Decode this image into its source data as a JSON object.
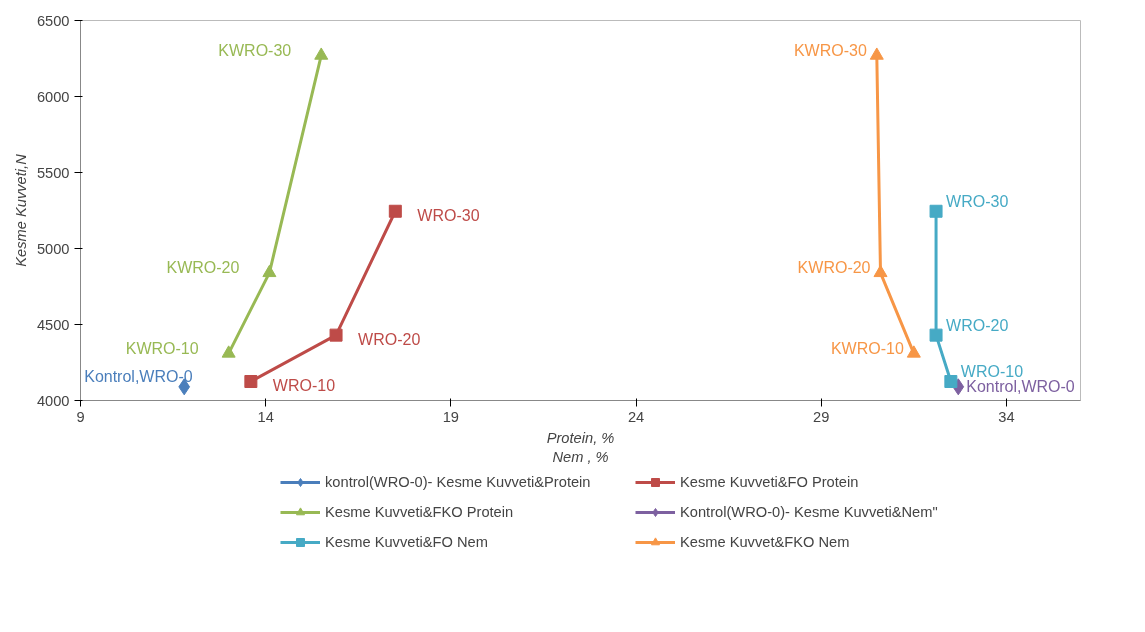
{
  "chart_data": {
    "type": "line",
    "xlabel": "Protein, %\nNem , %",
    "ylabel": "Kesme Kuvveti,N",
    "xlim": [
      9,
      36
    ],
    "ylim": [
      4000,
      6500
    ],
    "xticks": [
      9,
      14,
      19,
      24,
      29,
      34
    ],
    "yticks": [
      4000,
      4500,
      5000,
      5500,
      6000,
      6500
    ],
    "grid": false,
    "legend": "bottom",
    "series": [
      {
        "name": "kontrol(WRO-0)- Kesme Kuvveti&Protein",
        "color": "#4a7ebb",
        "marker": "diamond",
        "x": [
          11.8
        ],
        "values": [
          4090
        ],
        "value_labels": [
          "Kontrol,WRO-0"
        ]
      },
      {
        "name": "Kesme Kuvveti&FO Protein",
        "color": "#be4b48",
        "marker": "square",
        "x": [
          13.6,
          15.9,
          17.5
        ],
        "values": [
          4125,
          4430,
          5245
        ],
        "value_labels": [
          "WRO-10",
          "WRO-20",
          "WRO-30"
        ]
      },
      {
        "name": "Kesme Kuvveti&FKO Protein",
        "color": "#98b954",
        "marker": "triangle",
        "x": [
          13.0,
          14.1,
          15.5
        ],
        "values": [
          4310,
          4840,
          6270
        ],
        "value_labels": [
          "KWRO-10",
          "KWRO-20",
          "KWRO-30"
        ]
      },
      {
        "name": "Kontrol(WRO-0)- Kesme Kuvveti&Nem\"",
        "color": "#7d60a0",
        "marker": "diamond",
        "x": [
          32.7
        ],
        "values": [
          4090
        ],
        "value_labels": [
          "Kontrol,WRO-0"
        ]
      },
      {
        "name": "Kesme Kuvveti&FO Nem",
        "color": "#46aac5",
        "marker": "square",
        "x": [
          32.5,
          32.1,
          32.1
        ],
        "values": [
          4125,
          4430,
          5245
        ],
        "value_labels": [
          "WRO-10",
          "WRO-20",
          "WRO-30"
        ]
      },
      {
        "name": "Kesme Kuvvet&FKO Nem",
        "color": "#f79646",
        "marker": "triangle",
        "x": [
          31.5,
          30.6,
          30.5
        ],
        "values": [
          4310,
          4840,
          6270
        ],
        "value_labels": [
          "KWRO-10",
          "KWRO-20",
          "KWRO-30"
        ]
      }
    ]
  }
}
